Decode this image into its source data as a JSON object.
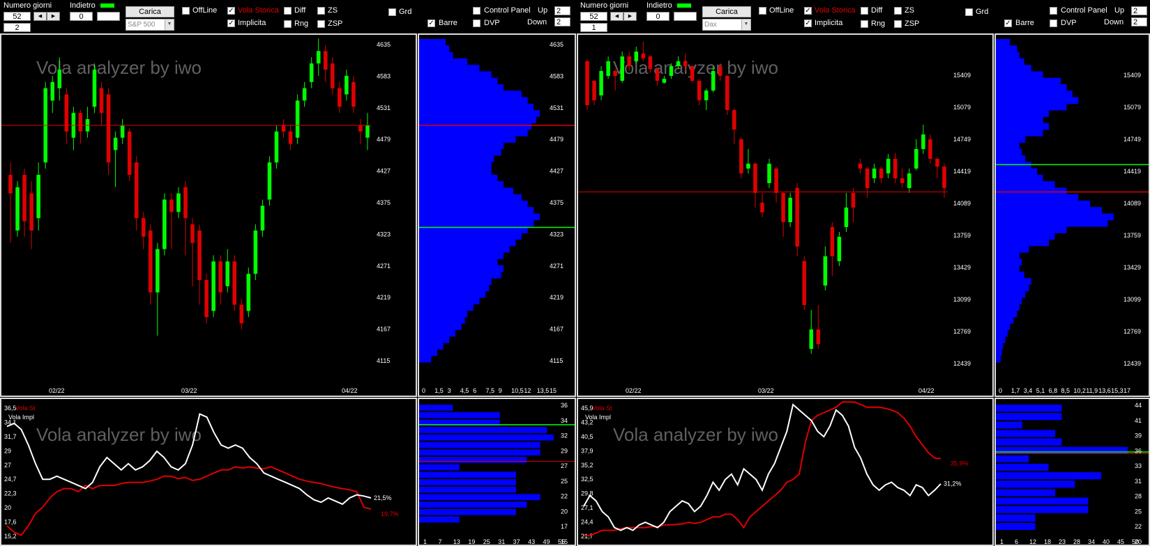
{
  "colors": {
    "bull": "#00ff00",
    "bear": "#e00000",
    "volume": "#0000ff",
    "green_line": "#00ff00",
    "red_line": "#e00000",
    "vola_impl": "#ffffff",
    "vola_st": "#e00000",
    "watermark": "#606060"
  },
  "watermark": "Vola analyzer by iwo",
  "panes": [
    {
      "controls": {
        "numero_giorni_label": "Numero giorni",
        "numero_giorni_value": "52",
        "secondary_value": "2",
        "indietro_label": "Indietro",
        "indietro_value": "0",
        "carica_label": "Carica",
        "symbol": "S&P 500",
        "offline_label": "OffLine",
        "vola_storica_label": "Vola Storica",
        "vola_storica_checked": true,
        "implicita_label": "Implicita",
        "implicita_checked": true,
        "diff_label": "Diff",
        "rng_label": "Rng",
        "zs_label": "ZS",
        "zsp_label": "ZSP",
        "grd_label": "Grd",
        "barre_label": "Barre",
        "barre_checked": true,
        "control_panel_label": "Control Panel",
        "dvp_label": "DVP",
        "up_label": "Up",
        "up_value": "2",
        "down_label": "Down",
        "down_value": "2"
      },
      "price_axis": [
        "4635",
        "4583",
        "4531",
        "4479",
        "4427",
        "4375",
        "4323",
        "4271",
        "4219",
        "4167",
        "4115"
      ],
      "date_labels": [
        "02/22",
        "03/22",
        "04/22"
      ],
      "chart_data": {
        "type": "candlestick",
        "ylim": [
          4115,
          4635
        ],
        "red_line": 4500,
        "green_line": 4335,
        "candles": [
          [
            4420,
            4390,
            4440,
            4310
          ],
          [
            4330,
            4400,
            4410,
            4320
          ],
          [
            4420,
            4345,
            4430,
            4320
          ],
          [
            4390,
            4330,
            4410,
            4300
          ],
          [
            4350,
            4420,
            4440,
            4330
          ],
          [
            4440,
            4560,
            4570,
            4430
          ],
          [
            4540,
            4570,
            4580,
            4520
          ],
          [
            4560,
            4590,
            4610,
            4540
          ],
          [
            4550,
            4490,
            4560,
            4470
          ],
          [
            4480,
            4520,
            4530,
            4460
          ],
          [
            4520,
            4490,
            4525,
            4470
          ],
          [
            4490,
            4510,
            4530,
            4480
          ],
          [
            4530,
            4590,
            4600,
            4520
          ],
          [
            4560,
            4520,
            4570,
            4500
          ],
          [
            4550,
            4440,
            4560,
            4420
          ],
          [
            4460,
            4480,
            4490,
            4400
          ],
          [
            4480,
            4500,
            4510,
            4470
          ],
          [
            4490,
            4420,
            4495,
            4410
          ],
          [
            4440,
            4350,
            4450,
            4330
          ],
          [
            4350,
            4320,
            4360,
            4300
          ],
          [
            4330,
            4230,
            4340,
            4210
          ],
          [
            4230,
            4300,
            4310,
            4160
          ],
          [
            4300,
            4380,
            4390,
            4290
          ],
          [
            4380,
            4360,
            4390,
            4300
          ],
          [
            4360,
            4390,
            4400,
            4350
          ],
          [
            4400,
            4350,
            4410,
            4290
          ],
          [
            4340,
            4310,
            4350,
            4240
          ],
          [
            4330,
            4250,
            4340,
            4210
          ],
          [
            4250,
            4190,
            4260,
            4180
          ],
          [
            4200,
            4280,
            4290,
            4190
          ],
          [
            4280,
            4230,
            4290,
            4210
          ],
          [
            4240,
            4280,
            4300,
            4230
          ],
          [
            4280,
            4210,
            4290,
            4200
          ],
          [
            4210,
            4180,
            4220,
            4170
          ],
          [
            4200,
            4260,
            4270,
            4190
          ],
          [
            4260,
            4330,
            4340,
            4250
          ],
          [
            4330,
            4370,
            4380,
            4320
          ],
          [
            4380,
            4440,
            4450,
            4370
          ],
          [
            4440,
            4490,
            4500,
            4430
          ],
          [
            4500,
            4490,
            4510,
            4480
          ],
          [
            4490,
            4470,
            4500,
            4460
          ],
          [
            4480,
            4540,
            4550,
            4470
          ],
          [
            4540,
            4560,
            4570,
            4530
          ],
          [
            4570,
            4600,
            4610,
            4560
          ],
          [
            4600,
            4620,
            4640,
            4580
          ],
          [
            4620,
            4590,
            4630,
            4570
          ],
          [
            4600,
            4560,
            4610,
            4550
          ],
          [
            4560,
            4530,
            4570,
            4520
          ],
          [
            4550,
            4580,
            4590,
            4540
          ],
          [
            4570,
            4530,
            4580,
            4520
          ],
          [
            4500,
            4490,
            4510,
            4470
          ],
          [
            4480,
            4500,
            4520,
            4460
          ]
        ]
      },
      "volume_profile": [
        0.22,
        0.25,
        0.28,
        0.4,
        0.5,
        0.6,
        0.65,
        0.7,
        0.85,
        0.9,
        0.95,
        1.0,
        0.97,
        0.93,
        0.9,
        0.8,
        0.7,
        0.68,
        0.62,
        0.6,
        0.6,
        0.65,
        0.7,
        0.78,
        0.85,
        0.9,
        0.95,
        1.0,
        0.95,
        0.9,
        0.85,
        0.8,
        0.75,
        0.7,
        0.65,
        0.7,
        0.68,
        0.6,
        0.58,
        0.55,
        0.5,
        0.45,
        0.4,
        0.38,
        0.35,
        0.3,
        0.25,
        0.2,
        0.15,
        0.1
      ],
      "profile_x_axis": [
        "0",
        "1,5",
        "3",
        "4,5",
        "6",
        "7,5",
        "9",
        "10,5",
        "12",
        "13,5",
        "15"
      ],
      "vola_axis": [
        "36,5",
        "34,1",
        "31,7",
        "29",
        "27",
        "24,7",
        "22,3",
        "20",
        "17,6",
        "15,2"
      ],
      "vola_ylim": [
        15,
        36.5
      ],
      "vola_st_label": "Vola St",
      "vola_impl_label": "Vola Impl",
      "vola_impl_value": "21,5%",
      "vola_st_value": "19,7%",
      "vola_impl_series": [
        33,
        33.5,
        32.5,
        30,
        27,
        24.5,
        24.5,
        25,
        24.5,
        24,
        23.5,
        23,
        24,
        26.5,
        28,
        27,
        26,
        27,
        26,
        26.5,
        27.5,
        29,
        28,
        26.5,
        26,
        27,
        30,
        35,
        34.5,
        32,
        30,
        29.5,
        30,
        29.5,
        28,
        27,
        25.5,
        25,
        24.5,
        24,
        23.5,
        23,
        22,
        21.2,
        20.8,
        21.5,
        21,
        20.5,
        21.5,
        22,
        21.8,
        21.5
      ],
      "vola_st_series": [
        17,
        16,
        15.5,
        17,
        19,
        20,
        21.5,
        22.5,
        23,
        23,
        22.5,
        23.5,
        23,
        23.5,
        23.5,
        23.5,
        23.8,
        24,
        24,
        24,
        24.2,
        24.5,
        25,
        25,
        24.6,
        24.8,
        24.3,
        24.5,
        25,
        25.5,
        26,
        26,
        26.5,
        26.3,
        26.5,
        26.3,
        26.2,
        26.5,
        26,
        25.5,
        25,
        24.5,
        24.2,
        24,
        23.8,
        23.5,
        23.2,
        23,
        22.8,
        22.5,
        20,
        19.7
      ],
      "vola_profile": [
        0.25,
        0.6,
        0.6,
        0.95,
        1.0,
        0.9,
        0.9,
        0.8,
        0.3,
        0.72,
        0.72,
        0.72,
        0.9,
        0.8,
        0.72,
        0.3,
        0.0
      ],
      "vola_profile_axis": [
        "36",
        "34",
        "32",
        "29",
        "27",
        "25",
        "22",
        "20",
        "17",
        "15"
      ],
      "vola_profile_x_axis": [
        "1",
        "7",
        "13",
        "19",
        "25",
        "31",
        "37",
        "43",
        "49",
        "55"
      ]
    },
    {
      "controls": {
        "numero_giorni_label": "Numero giorni",
        "numero_giorni_value": "52",
        "secondary_value": "1",
        "indietro_label": "Indietro",
        "indietro_value": "0",
        "carica_label": "Carica",
        "symbol": "Dax",
        "offline_label": "OffLine",
        "vola_storica_label": "Vola Storica",
        "vola_storica_checked": true,
        "implicita_label": "Implicita",
        "implicita_checked": true,
        "diff_label": "Diff",
        "rng_label": "Rng",
        "zs_label": "ZS",
        "zsp_label": "ZSP",
        "grd_label": "Grd",
        "barre_label": "Barre",
        "barre_checked": true,
        "control_panel_label": "Control Panel",
        "dvp_label": "DVP",
        "up_label": "Up",
        "up_value": "2",
        "down_label": "Down",
        "down_value": "2"
      },
      "price_axis": [
        "15409",
        "15079",
        "14749",
        "14419",
        "14089",
        "13759",
        "13429",
        "13099",
        "12769",
        "12439"
      ],
      "date_labels": [
        "02/22",
        "03/22",
        "04/22"
      ],
      "chart_data": {
        "type": "candlestick",
        "ylim": [
          12400,
          15700
        ],
        "red_line": 14160,
        "green_line": 14440,
        "candles": [
          [
            15500,
            15050,
            15520,
            15000
          ],
          [
            15300,
            15100,
            15310,
            15050
          ],
          [
            15150,
            15400,
            15450,
            15100
          ],
          [
            15350,
            15500,
            15550,
            15320
          ],
          [
            15400,
            15350,
            15420,
            15200
          ],
          [
            15300,
            15550,
            15600,
            15280
          ],
          [
            15550,
            15450,
            15600,
            15400
          ],
          [
            15500,
            15600,
            15650,
            15480
          ],
          [
            15580,
            15530,
            15700,
            15500
          ],
          [
            15550,
            15420,
            15560,
            15380
          ],
          [
            15420,
            15300,
            15430,
            15250
          ],
          [
            15280,
            15320,
            15350,
            15270
          ],
          [
            15350,
            15450,
            15480,
            15320
          ],
          [
            15450,
            15500,
            15550,
            15420
          ],
          [
            15500,
            15450,
            15580,
            15400
          ],
          [
            15450,
            15300,
            15460,
            15280
          ],
          [
            15300,
            15100,
            15320,
            15050
          ],
          [
            15100,
            15200,
            15220,
            15000
          ],
          [
            15200,
            15400,
            15450,
            15180
          ],
          [
            15450,
            15350,
            15480,
            15300
          ],
          [
            15350,
            15000,
            15360,
            14950
          ],
          [
            15000,
            14800,
            15020,
            14650
          ],
          [
            14700,
            14350,
            14720,
            14300
          ],
          [
            14400,
            14450,
            14600,
            14350
          ],
          [
            14450,
            14150,
            14460,
            14000
          ],
          [
            14050,
            13950,
            14150,
            13900
          ],
          [
            14250,
            14450,
            14500,
            14200
          ],
          [
            14400,
            14150,
            14420,
            14050
          ],
          [
            14150,
            13850,
            14160,
            13700
          ],
          [
            13850,
            14100,
            14150,
            13800
          ],
          [
            14200,
            13600,
            14250,
            13500
          ],
          [
            13450,
            13000,
            13500,
            12950
          ],
          [
            12550,
            12750,
            12950,
            12500
          ],
          [
            12750,
            12600,
            13000,
            12550
          ],
          [
            13200,
            13500,
            13600,
            13150
          ],
          [
            13800,
            13500,
            13850,
            13300
          ],
          [
            13450,
            13700,
            13750,
            13400
          ],
          [
            13800,
            14000,
            14150,
            13750
          ],
          [
            14150,
            14000,
            14200,
            13850
          ],
          [
            14450,
            14400,
            14500,
            14350
          ],
          [
            14400,
            14200,
            14420,
            14100
          ],
          [
            14300,
            14400,
            14450,
            14250
          ],
          [
            14400,
            14300,
            14420,
            14250
          ],
          [
            14350,
            14500,
            14550,
            14300
          ],
          [
            14500,
            14300,
            14560,
            14250
          ],
          [
            14300,
            14250,
            14400,
            14200
          ],
          [
            14200,
            14350,
            14400,
            14150
          ],
          [
            14400,
            14600,
            14700,
            14380
          ],
          [
            14600,
            14750,
            14850,
            14550
          ],
          [
            14700,
            14500,
            14750,
            14450
          ],
          [
            14500,
            14420,
            14520,
            14300
          ],
          [
            14420,
            14200,
            14450,
            14100
          ]
        ]
      },
      "volume_profile": [
        0.12,
        0.18,
        0.2,
        0.24,
        0.3,
        0.4,
        0.55,
        0.6,
        0.65,
        0.7,
        0.6,
        0.45,
        0.4,
        0.45,
        0.4,
        0.25,
        0.2,
        0.22,
        0.25,
        0.3,
        0.35,
        0.4,
        0.5,
        0.6,
        0.7,
        0.8,
        0.9,
        1.0,
        0.95,
        0.6,
        0.5,
        0.45,
        0.28,
        0.2,
        0.22,
        0.2,
        0.24,
        0.3,
        0.28,
        0.25,
        0.22,
        0.2,
        0.18,
        0.15,
        0.12,
        0.1,
        0.08,
        0.06,
        0.05,
        0.04
      ],
      "profile_x_axis": [
        "0",
        "1,7",
        "3,4",
        "5,1",
        "6,8",
        "8,5",
        "10,2",
        "11,9",
        "13,6",
        "15,3",
        "17"
      ],
      "vola_axis": [
        "45,9",
        "43,2",
        "40,5",
        "37,9",
        "35,2",
        "32,5",
        "29,8",
        "27,1",
        "24,4",
        "21,7"
      ],
      "vola_ylim": [
        21,
        46
      ],
      "vola_st_label": "Vola St",
      "vola_impl_label": "Vola Impl",
      "vola_impl_value": "31,2%",
      "vola_st_value": "35,9%",
      "vola_impl_series": [
        27,
        29,
        28,
        26,
        25,
        23,
        22.5,
        23,
        22.5,
        23.5,
        24,
        23.5,
        23,
        24,
        26,
        27,
        28,
        27.5,
        26,
        27,
        29,
        31.5,
        30,
        32,
        33,
        31,
        34,
        33,
        32,
        30,
        33,
        35,
        38,
        41,
        46,
        45,
        44,
        43,
        41,
        40,
        42,
        45,
        44,
        42,
        38,
        36,
        33,
        31,
        30,
        31,
        31.5,
        30.5,
        30,
        29,
        31,
        30.5,
        29,
        30,
        31.2
      ],
      "vola_st_series": [
        21.5,
        21.5,
        22,
        22.5,
        22.5,
        22.5,
        22.8,
        23,
        23,
        23,
        23,
        23.2,
        23.2,
        23.5,
        23.5,
        23.6,
        23.7,
        24,
        23.8,
        24,
        24.5,
        25,
        25,
        25.5,
        25.5,
        24.5,
        23,
        25,
        26,
        27,
        28,
        29,
        30,
        31.5,
        32,
        33,
        39,
        43,
        44,
        44.5,
        45,
        45.5,
        46.5,
        46.5,
        46.5,
        46,
        45.5,
        45.5,
        45.5,
        45.3,
        45,
        44.5,
        43.5,
        42,
        40,
        38.5,
        37,
        36,
        35.9
      ],
      "vola_profile": [
        0.5,
        0.5,
        0.2,
        0.45,
        0.5,
        1.0,
        0.25,
        0.4,
        0.8,
        0.6,
        0.45,
        0.7,
        0.7,
        0.3,
        0.3
      ],
      "vola_profile_axis": [
        "44",
        "41",
        "39",
        "36",
        "33",
        "31",
        "28",
        "25",
        "22",
        "20"
      ],
      "vola_profile_x_axis": [
        "1",
        "6",
        "12",
        "18",
        "23",
        "28",
        "34",
        "40",
        "45",
        "50"
      ]
    }
  ]
}
